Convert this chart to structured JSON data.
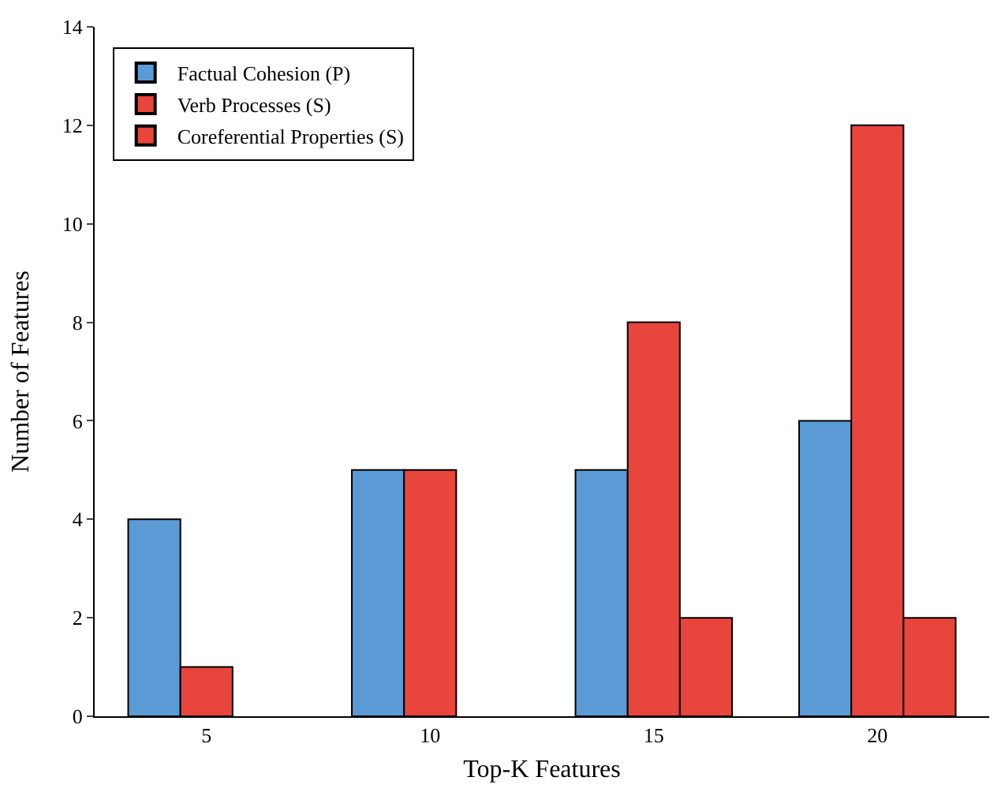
{
  "chart_data": {
    "type": "bar",
    "xlabel": "Top-K Features",
    "ylabel": "Number of Features",
    "categories": [
      "5",
      "10",
      "15",
      "20"
    ],
    "series": [
      {
        "name": "Factual Cohesion (P)",
        "color": "#5b9bd5",
        "values": [
          4,
          5,
          5,
          6
        ]
      },
      {
        "name": "Verb Processes (S)",
        "color": "#e8453c",
        "values": [
          1,
          5,
          8,
          12
        ]
      },
      {
        "name": "Coreferential Properties (S)",
        "color": "#e8453c",
        "values": [
          null,
          null,
          2,
          2
        ]
      }
    ],
    "ylim": [
      0,
      14
    ],
    "yticks": [
      0,
      2,
      4,
      6,
      8,
      10,
      12,
      14
    ],
    "grid": false,
    "legend": "top left"
  }
}
